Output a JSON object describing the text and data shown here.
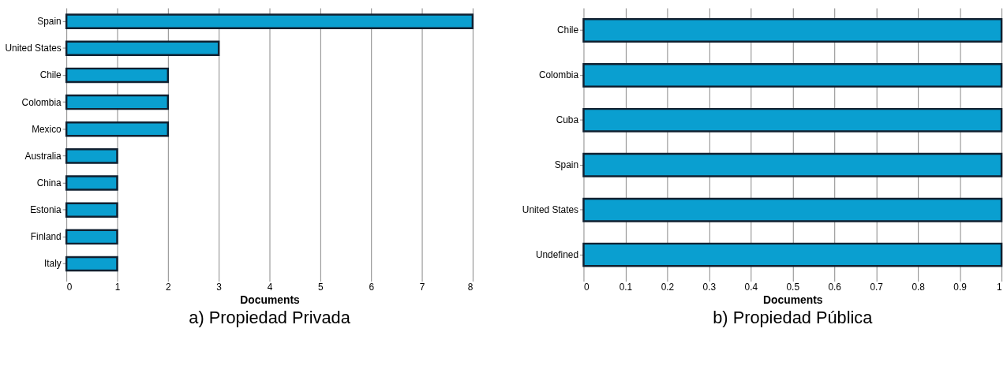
{
  "chart_data": [
    {
      "type": "bar",
      "orientation": "horizontal",
      "title": "a) Propiedad Privada",
      "xlabel": "Documents",
      "categories": [
        "Spain",
        "United States",
        "Chile",
        "Colombia",
        "Mexico",
        "Australia",
        "China",
        "Estonia",
        "Finland",
        "Italy"
      ],
      "values": [
        8,
        3,
        2,
        2,
        2,
        1,
        1,
        1,
        1,
        1
      ],
      "color": "#0a9fd0",
      "xlim": [
        0,
        8
      ],
      "xticks": [
        0,
        1,
        2,
        3,
        4,
        5,
        6,
        7,
        8
      ],
      "grid": "x"
    },
    {
      "type": "bar",
      "orientation": "horizontal",
      "title": "b) Propiedad Pública",
      "xlabel": "Documents",
      "categories": [
        "Chile",
        "Colombia",
        "Cuba",
        "Spain",
        "United States",
        "Undefined"
      ],
      "values": [
        1,
        1,
        1,
        1,
        1,
        1
      ],
      "color": "#0a9fd0",
      "xlim": [
        0,
        1
      ],
      "xticks": [
        0,
        0.1,
        0.2,
        0.3,
        0.4,
        0.5,
        0.6,
        0.7,
        0.8,
        0.9,
        1
      ],
      "grid": "x"
    }
  ]
}
